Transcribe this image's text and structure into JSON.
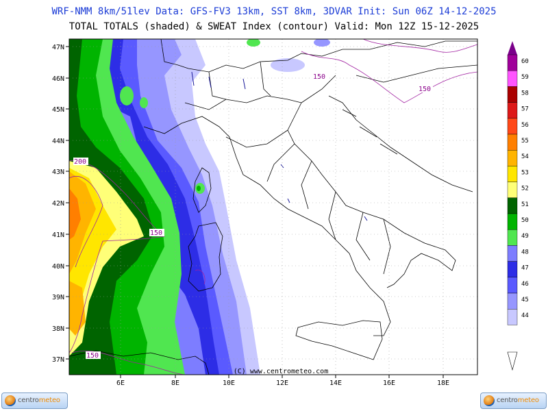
{
  "header": {
    "line1": "WRF-NMM 8km/51lev  Data: GFS-FV3 13km, SST 8km, 3DVAR  Init: Sun 06Z 14-12-2025",
    "line2": "TOTAL TOTALS (shaded) & SWEAT Index (contour)  Valid: Mon 12Z 15-12-2025"
  },
  "map": {
    "lat_labels": [
      "47N",
      "46N",
      "45N",
      "44N",
      "43N",
      "42N",
      "41N",
      "40N",
      "39N",
      "38N",
      "37N"
    ],
    "lon_labels": [
      "6E",
      "8E",
      "10E",
      "12E",
      "14E",
      "16E",
      "18E"
    ],
    "credit": "(C) www.centrometeo.com",
    "sweat_labels": [
      "200",
      "150",
      "150",
      "150",
      "150"
    ]
  },
  "legend": {
    "values": [
      "60",
      "59",
      "58",
      "57",
      "56",
      "55",
      "54",
      "53",
      "52",
      "51",
      "50",
      "49",
      "48",
      "47",
      "46",
      "45",
      "44"
    ],
    "colors": [
      "#a0009a",
      "#ff55ff",
      "#aa0000",
      "#dd1818",
      "#ff4818",
      "#ff7f00",
      "#ffb400",
      "#ffe600",
      "#ffff78",
      "#006400",
      "#00b400",
      "#50e650",
      "#7d7dff",
      "#2d2de6",
      "#5a5aff",
      "#9696ff",
      "#c8c8ff"
    ],
    "arrow_color": "#7a008a"
  },
  "logos": {
    "left_a": "centro",
    "left_b": "meteo",
    "right_a": "centro",
    "right_b": "meteo"
  }
}
